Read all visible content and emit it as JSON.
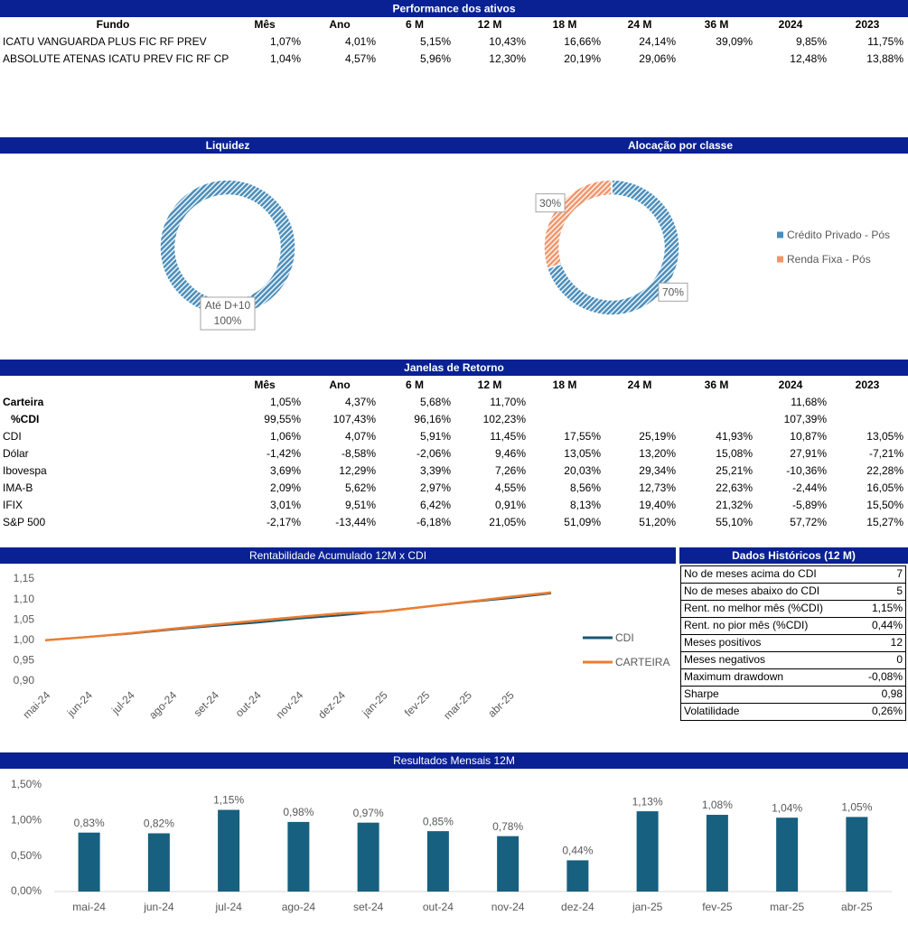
{
  "performance": {
    "title": "Performance dos ativos",
    "headers": [
      "Fundo",
      "Mês",
      "Ano",
      "6 M",
      "12 M",
      "18 M",
      "24 M",
      "36 M",
      "2024",
      "2023"
    ],
    "rows": [
      [
        "ICATU VANGUARDA PLUS FIC RF PREV",
        "1,07%",
        "4,01%",
        "5,15%",
        "10,43%",
        "16,66%",
        "24,14%",
        "39,09%",
        "9,85%",
        "11,75%"
      ],
      [
        "ABSOLUTE ATENAS ICATU PREV FIC RF CP",
        "1,04%",
        "4,57%",
        "5,96%",
        "12,30%",
        "20,19%",
        "29,06%",
        null,
        "12,48%",
        "13,88%"
      ]
    ]
  },
  "liquidez": {
    "title": "Liquidez",
    "chart": {
      "type": "donut",
      "categories": [
        "Até D+10"
      ],
      "values": [
        100
      ],
      "value_labels": [
        "100%"
      ],
      "colors": [
        "#4a8dba"
      ]
    }
  },
  "alocacao": {
    "title": "Alocação por classe",
    "chart": {
      "type": "donut",
      "categories": [
        "Crédito Privado - Pós",
        "Renda Fixa - Pós"
      ],
      "values": [
        70,
        30
      ],
      "value_labels": [
        "70%",
        "30%"
      ],
      "colors": [
        "#4a8dba",
        "#f0956a"
      ],
      "legend": "right"
    }
  },
  "janelas": {
    "title": "Janelas de Retorno",
    "headers": [
      "Mês",
      "Ano",
      "6 M",
      "12 M",
      "18 M",
      "24 M",
      "36 M",
      "2024",
      "2023"
    ],
    "rows": [
      [
        "Carteira",
        "1,05%",
        "4,37%",
        "5,68%",
        "11,70%",
        null,
        null,
        null,
        "11,68%",
        null
      ],
      [
        "%CDI",
        "99,55%",
        "107,43%",
        "96,16%",
        "102,23%",
        null,
        null,
        null,
        "107,39%",
        null
      ],
      [
        "CDI",
        "1,06%",
        "4,07%",
        "5,91%",
        "11,45%",
        "17,55%",
        "25,19%",
        "41,93%",
        "10,87%",
        "13,05%"
      ],
      [
        "Dólar",
        "-1,42%",
        "-8,58%",
        "-2,06%",
        "9,46%",
        "13,05%",
        "13,20%",
        "15,08%",
        "27,91%",
        "-7,21%"
      ],
      [
        "Ibovespa",
        "3,69%",
        "12,29%",
        "3,39%",
        "7,26%",
        "20,03%",
        "29,34%",
        "25,21%",
        "-10,36%",
        "22,28%"
      ],
      [
        "IMA-B",
        "2,09%",
        "5,62%",
        "2,97%",
        "4,55%",
        "8,56%",
        "12,73%",
        "22,63%",
        "-2,44%",
        "16,05%"
      ],
      [
        "IFIX",
        "3,01%",
        "9,51%",
        "6,42%",
        "0,91%",
        "8,13%",
        "19,40%",
        "21,32%",
        "-5,89%",
        "15,50%"
      ],
      [
        "S&P 500",
        "-2,17%",
        "-13,44%",
        "-6,18%",
        "21,05%",
        "51,09%",
        "51,20%",
        "55,10%",
        "57,72%",
        "15,27%"
      ]
    ]
  },
  "rentabilidade": {
    "title": "Rentabilidade Acumulado 12M x CDI",
    "chart": {
      "type": "line",
      "categories": [
        "mai-24",
        "jun-24",
        "jul-24",
        "ago-24",
        "set-24",
        "out-24",
        "nov-24",
        "dez-24",
        "jan-25",
        "fev-25",
        "mar-25",
        "abr-25",
        null
      ],
      "series": [
        {
          "name": "CDI",
          "color": "#1b5873",
          "values": [
            1.0,
            1.008,
            1.016,
            1.026,
            1.035,
            1.043,
            1.053,
            1.061,
            1.071,
            1.082,
            1.093,
            1.103,
            1.115
          ]
        },
        {
          "name": "CARTEIRA",
          "color": "#ed7d31",
          "values": [
            1.0,
            1.008,
            1.017,
            1.028,
            1.038,
            1.048,
            1.057,
            1.066,
            1.07,
            1.082,
            1.094,
            1.106,
            1.117
          ]
        }
      ],
      "ylim": [
        0.9,
        1.15
      ],
      "yticks": [
        {
          "value": 0.9,
          "label": "0,90"
        },
        {
          "value": 0.95,
          "label": "0,95"
        },
        {
          "value": 1.0,
          "label": "1,00"
        },
        {
          "value": 1.05,
          "label": "1,05"
        },
        {
          "value": 1.1,
          "label": "1,10"
        },
        {
          "value": 1.15,
          "label": "1,15"
        }
      ]
    }
  },
  "dados_historicos": {
    "title": "Dados Históricos (12 M)",
    "rows": [
      [
        "No de meses acima do CDI",
        "7"
      ],
      [
        "No de meses abaixo do CDI",
        "5"
      ],
      [
        "Rent. no melhor mês (%CDI)",
        "1,15%"
      ],
      [
        "Rent. no pior mês (%CDI)",
        "0,44%"
      ],
      [
        "Meses positivos",
        "12"
      ],
      [
        "Meses negativos",
        "0"
      ],
      [
        "Maximum drawdown",
        "-0,08%"
      ],
      [
        "Sharpe",
        "0,98"
      ],
      [
        "Volatilidade",
        "0,26%"
      ]
    ]
  },
  "resultados": {
    "title": "Resultados Mensais 12M",
    "chart": {
      "type": "bar",
      "categories": [
        "mai-24",
        "jun-24",
        "jul-24",
        "ago-24",
        "set-24",
        "out-24",
        "nov-24",
        "dez-24",
        "jan-25",
        "fev-25",
        "mar-25",
        "abr-25"
      ],
      "values": [
        0.83,
        0.82,
        1.15,
        0.98,
        0.97,
        0.85,
        0.78,
        0.44,
        1.13,
        1.08,
        1.04,
        1.05
      ],
      "value_labels": [
        "0,83%",
        "0,82%",
        "1,15%",
        "0,98%",
        "0,97%",
        "0,85%",
        "0,78%",
        "0,44%",
        "1,13%",
        "1,08%",
        "1,04%",
        "1,05%"
      ],
      "color": "#17607f",
      "ylim": [
        0,
        1.5
      ],
      "yticks": [
        {
          "value": 0,
          "label": "0,00%"
        },
        {
          "value": 0.5,
          "label": "0,50%"
        },
        {
          "value": 1.0,
          "label": "1,00%"
        },
        {
          "value": 1.5,
          "label": "1,50%"
        }
      ]
    }
  }
}
